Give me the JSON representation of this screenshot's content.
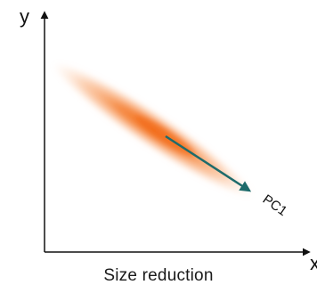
{
  "axes": {
    "y_label": "y",
    "x_label": "x"
  },
  "component": {
    "label": "PC1"
  },
  "caption": "Size reduction",
  "colors": {
    "cloud": "#f26f1d",
    "arrow": "#1e6b6b",
    "axis": "#111111"
  }
}
